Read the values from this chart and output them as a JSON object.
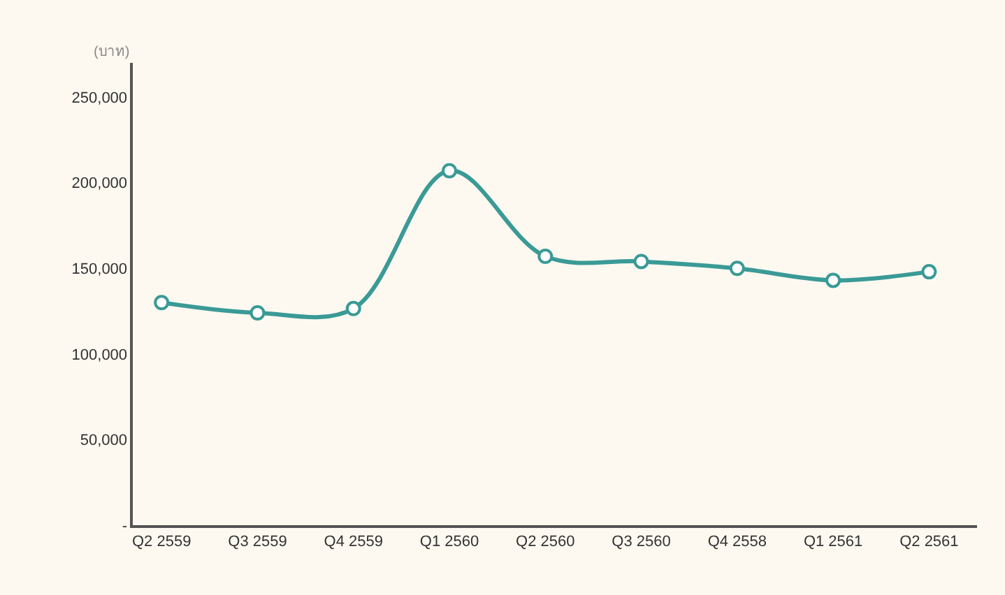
{
  "chart_data": {
    "type": "line",
    "ylabel": "(บาท)",
    "categories": [
      "Q2 2559",
      "Q3 2559",
      "Q4 2559",
      "Q1 2560",
      "Q2 2560",
      "Q3 2560",
      "Q4 2558",
      "Q1 2561",
      "Q2 2561"
    ],
    "series": [
      {
        "color": "#3a9a96",
        "values": [
          130000,
          124000,
          126500,
          207000,
          157000,
          154000,
          150000,
          143000,
          148000
        ]
      }
    ],
    "ylim": [
      0,
      270000
    ],
    "yticks": [
      {
        "value": 0,
        "label": "-"
      },
      {
        "value": 50000,
        "label": "50,000"
      },
      {
        "value": 100000,
        "label": "100,000"
      },
      {
        "value": 150000,
        "label": "150,000"
      },
      {
        "value": 200000,
        "label": "200,000"
      },
      {
        "value": 250000,
        "label": "250,000"
      }
    ],
    "grid": false,
    "legend": false,
    "marker": "circle",
    "line_style": "solid"
  }
}
